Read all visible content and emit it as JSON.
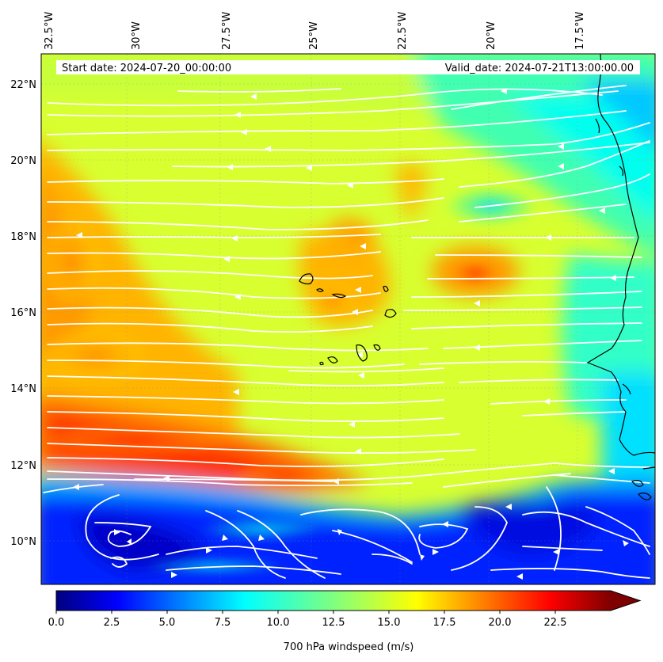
{
  "header": {
    "start_date": "Start date: 2024-07-20_00:00:00",
    "valid_date": "Valid_date: 2024-07-21T13:00:00.00"
  },
  "map": {
    "lon_range": [
      -32.5,
      -15.0
    ],
    "lat_range": [
      8.9,
      22.8
    ],
    "lon_ticks": [
      "32.5°W",
      "30°W",
      "27.5°W",
      "25°W",
      "22.5°W",
      "20°W",
      "17.5°W"
    ],
    "lat_ticks": [
      "10°N",
      "12°N",
      "14°N",
      "16°N",
      "18°N",
      "20°N",
      "22°N"
    ],
    "streamline_color": "#ffffff",
    "coastline_color": "#000000"
  },
  "colorbar": {
    "label": "700 hPa windspeed (m/s)",
    "min": 0,
    "max": 25,
    "ticks": [
      "0.0",
      "2.5",
      "5.0",
      "7.5",
      "10.0",
      "12.5",
      "15.0",
      "17.5",
      "20.0",
      "22.5"
    ],
    "extend": "max",
    "colormap": "jet"
  }
}
